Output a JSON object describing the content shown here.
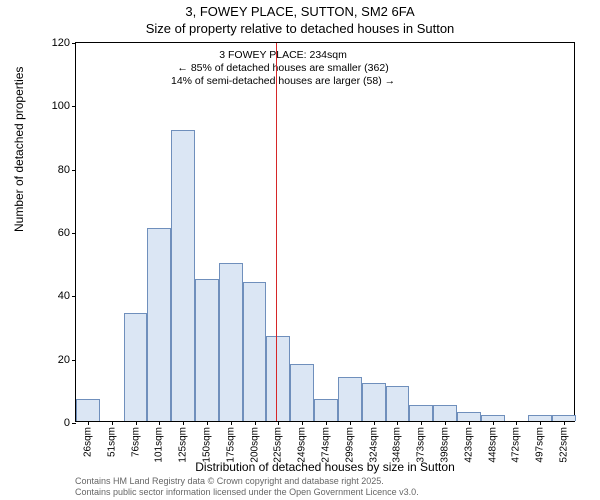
{
  "title": {
    "line1": "3, FOWEY PLACE, SUTTON, SM2 6FA",
    "line2": "Size of property relative to detached houses in Sutton"
  },
  "axes": {
    "ylabel": "Number of detached properties",
    "xlabel": "Distribution of detached houses by size in Sutton",
    "ylim": [
      0,
      120
    ],
    "yticks": [
      0,
      20,
      40,
      60,
      80,
      100,
      120
    ],
    "label_fontsize": 12,
    "tick_fontsize": 11
  },
  "histogram": {
    "type": "bar",
    "categories": [
      "26sqm",
      "51sqm",
      "76sqm",
      "101sqm",
      "125sqm",
      "150sqm",
      "175sqm",
      "200sqm",
      "225sqm",
      "249sqm",
      "274sqm",
      "299sqm",
      "324sqm",
      "348sqm",
      "373sqm",
      "398sqm",
      "423sqm",
      "448sqm",
      "472sqm",
      "497sqm",
      "522sqm"
    ],
    "values": [
      7,
      0,
      34,
      61,
      92,
      45,
      50,
      44,
      27,
      18,
      7,
      14,
      12,
      11,
      5,
      5,
      3,
      2,
      0,
      2,
      2
    ],
    "bar_fill": "#dbe6f4",
    "bar_border": "#6f8fbc",
    "bar_border_width": 1,
    "bar_width_ratio": 1.0
  },
  "marker": {
    "position_category_index": 8.4,
    "color": "#d62728",
    "width": 1
  },
  "annotation": {
    "line1": "3 FOWEY PLACE: 234sqm",
    "line2": "← 85% of detached houses are smaller (362)",
    "line3": "14% of semi-detached houses are larger (58) →",
    "fontsize": 10.5
  },
  "footer": {
    "line1": "Contains HM Land Registry data © Crown copyright and database right 2025.",
    "line2": "Contains public sector information licensed under the Open Government Licence v3.0."
  },
  "colors": {
    "background": "#ffffff",
    "text": "#000000",
    "footer_text": "#666666",
    "axis": "#000000"
  }
}
